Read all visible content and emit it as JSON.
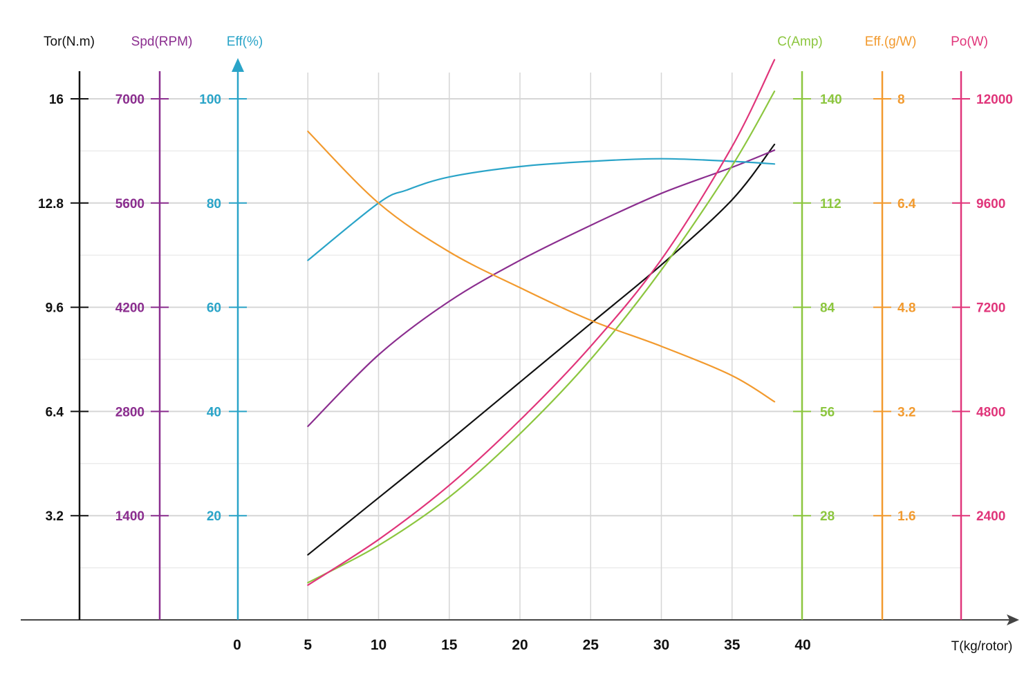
{
  "chart_data": {
    "type": "line",
    "xlabel": "T(kg/rotor)",
    "x_ticks": [
      "0",
      "5",
      "10",
      "15",
      "20",
      "25",
      "30",
      "35",
      "40"
    ],
    "xlim": [
      0,
      40
    ],
    "grid": true,
    "axes": [
      {
        "id": "tor",
        "title": "Tor(N.m)",
        "color": "#111111",
        "label_color": "#111111",
        "ticks": [
          "3.2",
          "6.4",
          "9.6",
          "12.8",
          "16"
        ],
        "range": [
          0,
          16
        ]
      },
      {
        "id": "spd",
        "title": "Spd(RPM)",
        "color": "#8b2e8f",
        "label_color": "#8b2e8f",
        "ticks": [
          "1400",
          "2800",
          "4200",
          "5600",
          "7000"
        ],
        "range": [
          0,
          7000
        ]
      },
      {
        "id": "eff",
        "title": "Eff(%)",
        "color": "#2aa4c8",
        "label_color": "#2aa4c8",
        "ticks": [
          "20",
          "40",
          "60",
          "80",
          "100"
        ],
        "range": [
          0,
          100
        ]
      },
      {
        "id": "cur",
        "title": "C(Amp)",
        "color": "#8cc63f",
        "label_color": "#8cc63f",
        "ticks": [
          "28",
          "56",
          "84",
          "112",
          "140"
        ],
        "range": [
          0,
          140
        ]
      },
      {
        "id": "effg",
        "title": "Eff.(g/W)",
        "color": "#f29a2e",
        "label_color": "#f29a2e",
        "ticks": [
          "1.6",
          "3.2",
          "4.8",
          "6.4",
          "8"
        ],
        "range": [
          0,
          8
        ]
      },
      {
        "id": "pow",
        "title": "Po(W)",
        "color": "#e0357a",
        "label_color": "#e0357a",
        "ticks": [
          "2400",
          "4800",
          "7200",
          "9600",
          "12000"
        ],
        "range": [
          0,
          12000
        ]
      }
    ],
    "series": [
      {
        "axis": "tor",
        "color": "#111111",
        "x": [
          5,
          10,
          15,
          20,
          25,
          30,
          35,
          38
        ],
        "y": [
          2.0,
          3.75,
          5.5,
          7.3,
          9.1,
          10.9,
          12.9,
          14.6
        ]
      },
      {
        "axis": "spd",
        "color": "#8b2e8f",
        "x": [
          5,
          10,
          15,
          20,
          25,
          30,
          35,
          38
        ],
        "y": [
          2600,
          3560,
          4280,
          4830,
          5300,
          5730,
          6080,
          6310
        ]
      },
      {
        "axis": "eff",
        "color": "#2aa4c8",
        "x": [
          5,
          10,
          12,
          15,
          20,
          25,
          30,
          35,
          38
        ],
        "y": [
          69,
          80,
          82.5,
          85,
          87,
          88,
          88.5,
          88,
          87.5
        ]
      },
      {
        "axis": "cur",
        "color": "#8cc63f",
        "x": [
          5,
          10,
          15,
          20,
          25,
          30,
          35,
          38
        ],
        "y": [
          10,
          20,
          33,
          50,
          70,
          94,
          122,
          142
        ]
      },
      {
        "axis": "effg",
        "color": "#f29a2e",
        "x": [
          5,
          10,
          15,
          20,
          25,
          30,
          35,
          38
        ],
        "y": [
          7.5,
          6.4,
          5.65,
          5.1,
          4.6,
          4.2,
          3.75,
          3.35
        ]
      },
      {
        "axis": "pow",
        "color": "#e0357a",
        "x": [
          5,
          10,
          15,
          20,
          25,
          30,
          35,
          38
        ],
        "y": [
          800,
          1850,
          3100,
          4600,
          6300,
          8300,
          10900,
          12900
        ]
      }
    ]
  }
}
